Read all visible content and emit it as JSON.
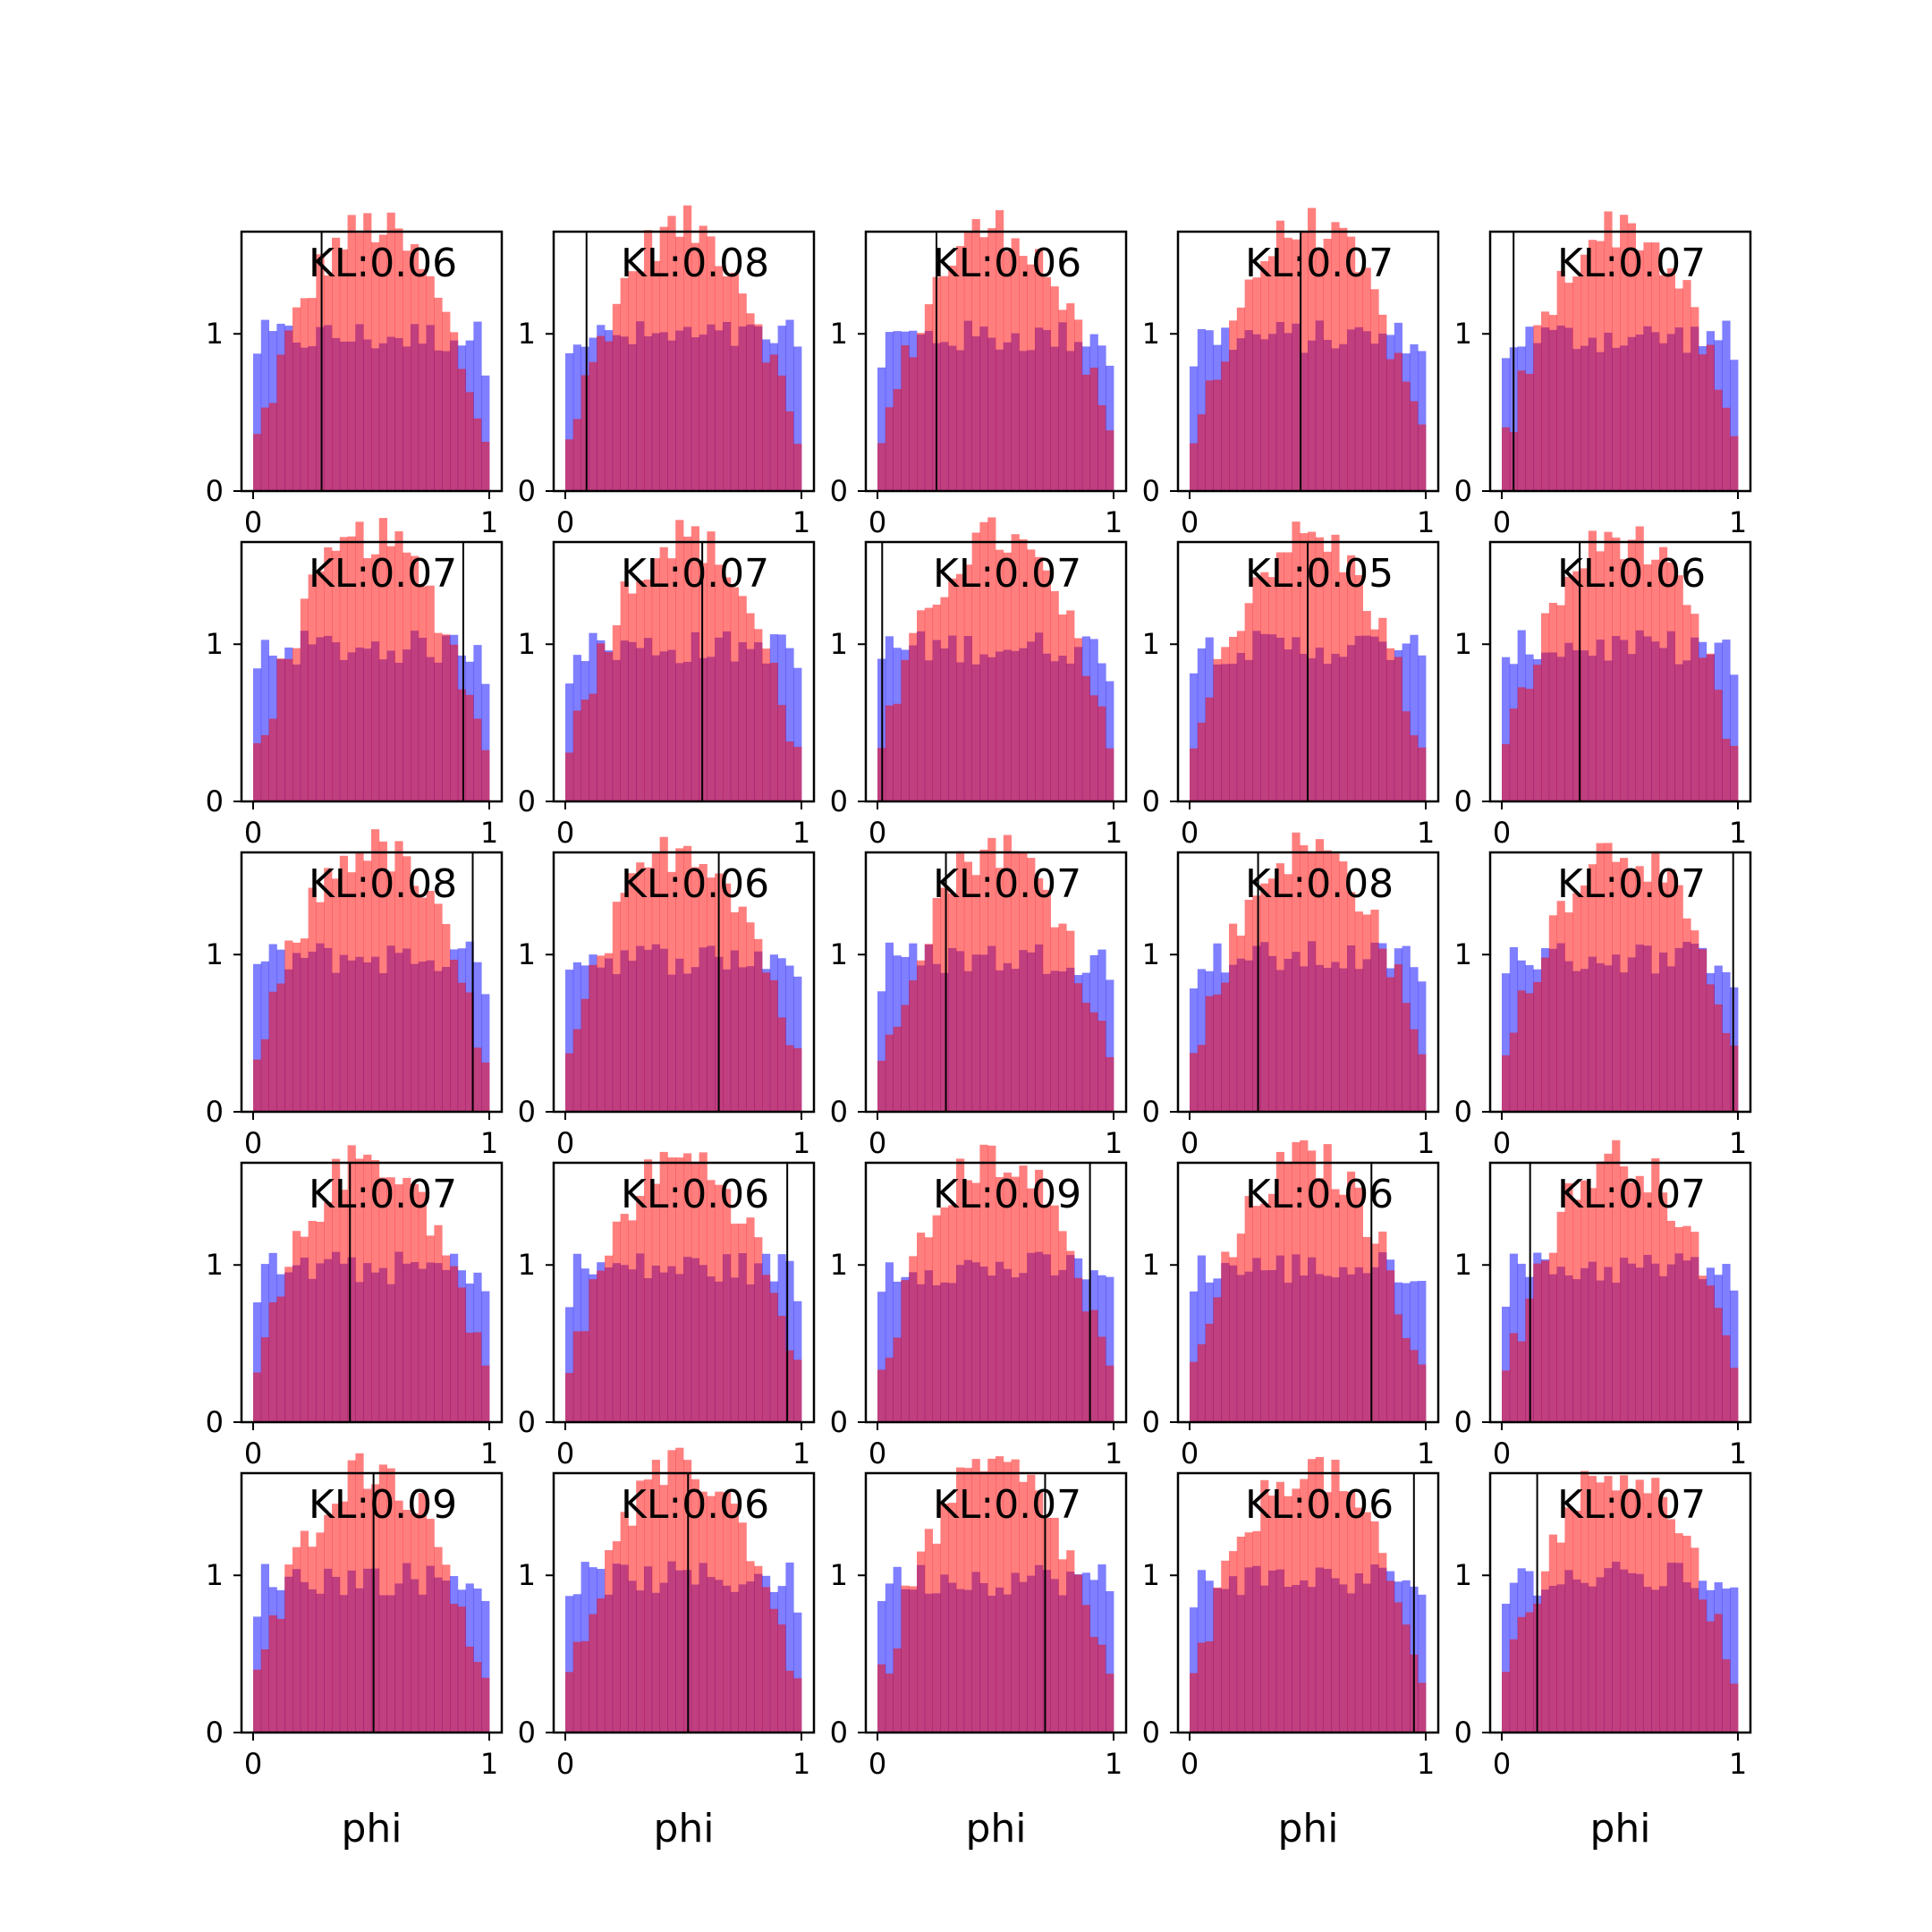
{
  "chart_data": {
    "type": "bar",
    "layout": {
      "rows": 5,
      "cols": 5
    },
    "xlim": [
      0,
      1
    ],
    "ylim": [
      0,
      1.65
    ],
    "xticks": [
      "0",
      "1"
    ],
    "yticks": [
      "0",
      "1"
    ],
    "xlabel": "phi",
    "bins": 30,
    "colors": {
      "series_a": "#0000ff",
      "series_b": "#ff0000",
      "line": "#000000"
    },
    "series_opacity": 0.5,
    "panels": [
      {
        "kl": "KL:0.06",
        "vline": 0.29
      },
      {
        "kl": "KL:0.08",
        "vline": 0.09
      },
      {
        "kl": "KL:0.06",
        "vline": 0.25
      },
      {
        "kl": "KL:0.07",
        "vline": 0.47
      },
      {
        "kl": "KL:0.07",
        "vline": 0.05
      },
      {
        "kl": "KL:0.07",
        "vline": 0.89
      },
      {
        "kl": "KL:0.07",
        "vline": 0.58
      },
      {
        "kl": "KL:0.07",
        "vline": 0.02
      },
      {
        "kl": "KL:0.05",
        "vline": 0.5
      },
      {
        "kl": "KL:0.06",
        "vline": 0.33
      },
      {
        "kl": "KL:0.08",
        "vline": 0.93
      },
      {
        "kl": "KL:0.06",
        "vline": 0.65
      },
      {
        "kl": "KL:0.07",
        "vline": 0.29
      },
      {
        "kl": "KL:0.08",
        "vline": 0.29
      },
      {
        "kl": "KL:0.07",
        "vline": 0.98
      },
      {
        "kl": "KL:0.07",
        "vline": 0.41
      },
      {
        "kl": "KL:0.06",
        "vline": 0.94
      },
      {
        "kl": "KL:0.09",
        "vline": 0.9
      },
      {
        "kl": "KL:0.06",
        "vline": 0.77
      },
      {
        "kl": "KL:0.07",
        "vline": 0.12
      },
      {
        "kl": "KL:0.09",
        "vline": 0.51
      },
      {
        "kl": "KL:0.06",
        "vline": 0.52
      },
      {
        "kl": "KL:0.07",
        "vline": 0.71
      },
      {
        "kl": "KL:0.06",
        "vline": 0.95
      },
      {
        "kl": "KL:0.07",
        "vline": 0.15
      }
    ]
  }
}
